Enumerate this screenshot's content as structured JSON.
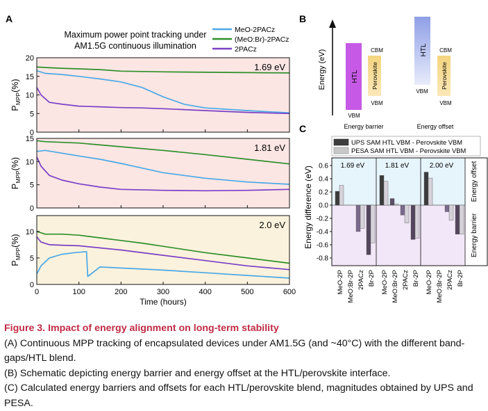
{
  "panel_labels": {
    "a": "A",
    "b": "B",
    "c": "C"
  },
  "chart_data": [
    {
      "type": "line",
      "panel": "A",
      "title": "Maximum power point tracking under",
      "subtitle": "AM1.5G continuous illumination",
      "xlabel": "Time (hours)",
      "ylabel": "P_MPP(%)",
      "ylabel_main": "P",
      "ylabel_sub": "MPP",
      "ylabel_tail": "(%)",
      "xlim": [
        0,
        600
      ],
      "xticks": [
        "0",
        "100",
        "200",
        "300",
        "400",
        "500",
        "600"
      ],
      "legend": [
        {
          "name": "MeO-2PACz",
          "color": "#4aa8e6"
        },
        {
          "name": "(MeO:Br)-2PACz",
          "color": "#2e8f2a"
        },
        {
          "name": "2PACz",
          "color": "#7b3fc6"
        }
      ],
      "subplots": [
        {
          "label": "1.69 eV",
          "background": "#fbe6e4",
          "ylim": [
            0,
            20
          ],
          "yticks": [
            "0",
            "5",
            "10",
            "15",
            "20"
          ],
          "series": [
            {
              "name": "MeO-2PACz",
              "x": [
                0,
                20,
                60,
                100,
                150,
                200,
                250,
                300,
                350,
                400,
                500,
                600
              ],
              "y": [
                16.5,
                15.8,
                15.5,
                15,
                14.3,
                13.5,
                12,
                9.5,
                7.5,
                6.5,
                5.8,
                5.2
              ]
            },
            {
              "name": "(MeO:Br)-2PACz",
              "x": [
                0,
                50,
                100,
                150,
                200,
                250,
                300,
                400,
                500,
                600
              ],
              "y": [
                17.5,
                17.2,
                17,
                16.8,
                16.4,
                16.3,
                16.2,
                16.1,
                16,
                15.9
              ]
            },
            {
              "name": "2PACz",
              "x": [
                0,
                10,
                30,
                60,
                100,
                150,
                200,
                250,
                300,
                400,
                500,
                600
              ],
              "y": [
                12,
                10,
                8,
                7.5,
                7,
                6.8,
                6.6,
                6.5,
                6.3,
                5.8,
                5.3,
                5
              ]
            }
          ]
        },
        {
          "label": "1.81 eV",
          "background": "#fbe6e4",
          "ylim": [
            0,
            15
          ],
          "yticks": [
            "0",
            "5",
            "10",
            "15"
          ],
          "series": [
            {
              "name": "MeO-2PACz",
              "x": [
                0,
                20,
                60,
                100,
                150,
                200,
                250,
                300,
                400,
                500,
                600
              ],
              "y": [
                12.2,
                12.4,
                11.8,
                11.2,
                10.5,
                9.6,
                8.6,
                7.6,
                6.4,
                5.6,
                5.1
              ]
            },
            {
              "name": "(MeO:Br)-2PACz",
              "x": [
                0,
                20,
                100,
                200,
                300,
                400,
                500,
                600
              ],
              "y": [
                14.5,
                14.3,
                14,
                13.2,
                12.4,
                11.5,
                10.5,
                9.5
              ]
            },
            {
              "name": "2PACz",
              "x": [
                0,
                10,
                30,
                60,
                100,
                150,
                200,
                300,
                400,
                500,
                600
              ],
              "y": [
                11,
                9,
                7,
                6,
                5.2,
                4.5,
                4,
                3.8,
                3.7,
                3.8,
                4
              ]
            }
          ]
        },
        {
          "label": "2.0 eV",
          "background": "#fbf2dd",
          "ylim": [
            0,
            13
          ],
          "yticks": [
            "0",
            "5",
            "10"
          ],
          "series": [
            {
              "name": "MeO-2PACz",
              "x": [
                0,
                10,
                30,
                60,
                90,
                118,
                121,
                150,
                200,
                300,
                400,
                500,
                600
              ],
              "y": [
                2,
                3.5,
                5,
                5.7,
                6,
                6.2,
                1.5,
                3.3,
                3.1,
                2.7,
                2.2,
                1.7,
                1.2
              ]
            },
            {
              "name": "(MeO:Br)-2PACz",
              "x": [
                0,
                20,
                60,
                100,
                150,
                200,
                250,
                300,
                400,
                500,
                600
              ],
              "y": [
                10,
                9.5,
                9.5,
                9.3,
                8.8,
                8.3,
                7.8,
                7.2,
                6,
                5,
                4
              ]
            },
            {
              "name": "2PACz",
              "x": [
                0,
                10,
                30,
                60,
                100,
                200,
                300,
                400,
                500,
                600
              ],
              "y": [
                9,
                8,
                7.5,
                7.4,
                7.3,
                6.5,
                5.5,
                4.5,
                3.5,
                2.8
              ]
            }
          ]
        }
      ]
    },
    {
      "type": "bar",
      "panel": "C",
      "ylabel": "Energy difference (eV)",
      "ylim": [
        -0.9,
        0.7
      ],
      "yticks": [
        "0.6",
        "0.4",
        "0.2",
        "0.0",
        "-0.2",
        "-0.4",
        "-0.6",
        "-0.8"
      ],
      "legend": [
        {
          "name": "UPS SAM HTL VBM - Perovskite VBM",
          "color": "#3e3e3e"
        },
        {
          "name": "PESA SAM HTL VBM - Perovskite VBM",
          "color": "#c8c8c8"
        }
      ],
      "region_labels": {
        "top": "Energy offset",
        "bottom": "Energy barrier"
      },
      "groups": [
        {
          "label": "1.69 eV",
          "categories": [
            "MeO-2P",
            "MeO:Br-2P",
            "2PACz",
            "Br-2P"
          ],
          "colors": [
            "#3c3c3c",
            "#5c4e68",
            "#7a6a8c",
            "#54465e"
          ],
          "series": [
            {
              "name": "UPS",
              "values": [
                0.21,
                null,
                -0.4,
                -0.75
              ]
            },
            {
              "name": "PESA",
              "values": [
                0.3,
                null,
                -0.35,
                -0.57
              ]
            }
          ]
        },
        {
          "label": "1.81 eV",
          "categories": [
            "MeO-2P",
            "MeO:Br-2P",
            "2PACz",
            "Br-2P"
          ],
          "colors": [
            "#3c3c3c",
            "#5c4e68",
            "#7a6a8c",
            "#54465e"
          ],
          "series": [
            {
              "name": "UPS",
              "values": [
                0.45,
                0.1,
                -0.15,
                -0.52
              ]
            },
            {
              "name": "PESA",
              "values": [
                0.36,
                0.02,
                -0.27,
                -0.5
              ]
            }
          ]
        },
        {
          "label": "2.00 eV",
          "categories": [
            "MeO-2P",
            "MeO:Br-2P",
            "2PACz",
            "Br-2P"
          ],
          "colors": [
            "#3c3c3c",
            "#5c4e68",
            "#7a6a8c",
            "#54465e"
          ],
          "series": [
            {
              "name": "UPS",
              "values": [
                0.5,
                null,
                -0.1,
                -0.44
              ]
            },
            {
              "name": "PESA",
              "values": [
                0.41,
                null,
                -0.23,
                -0.44
              ]
            }
          ]
        }
      ]
    }
  ],
  "schematic": {
    "y_axis": "Energy (eV)",
    "htl": "HTL",
    "perovskite": "Perovskite",
    "cbm": "CBM",
    "vbm": "VBM",
    "captions": [
      "Energy barrier",
      "Energy offset"
    ],
    "colors": {
      "htl_barrier": "#c65ae6",
      "htl_offset": "#b8c2ee",
      "perovskite": "#f6d88a"
    }
  },
  "caption": {
    "title": "Figure 3. Impact of energy alignment on long-term stability",
    "lines": [
      "(A) Continuous MPP tracking of encapsulated devices under AM1.5G (and ~40°C) with the different band-gaps/HTL blend.",
      "(B) Schematic depicting energy barrier and energy offset at the HTL/perovskite interface.",
      "(C) Calculated energy barriers and offsets for each HTL/perovskite blend, magnitudes obtained by UPS and PESA."
    ]
  }
}
